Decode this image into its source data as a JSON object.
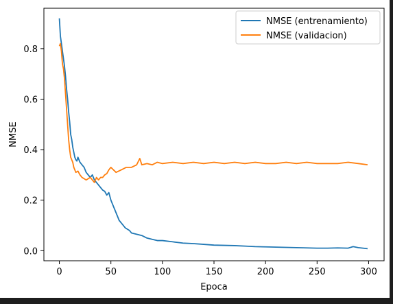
{
  "chart_data": {
    "type": "line",
    "xlabel": "Epoca",
    "ylabel": "NMSE",
    "xlim": [
      -15,
      315
    ],
    "ylim": [
      -0.04,
      0.96
    ],
    "xticks": [
      0,
      50,
      100,
      150,
      200,
      250,
      300
    ],
    "yticks": [
      0.0,
      0.2,
      0.4,
      0.6,
      0.8
    ],
    "ytick_labels": [
      "0.0",
      "0.2",
      "0.4",
      "0.6",
      "0.8"
    ],
    "legend_position": "top-right",
    "grid": false,
    "series": [
      {
        "name": "NMSE (entrenamiento)",
        "color": "#1f77b4",
        "x": [
          0,
          1,
          2,
          3,
          4,
          5,
          6,
          7,
          8,
          9,
          10,
          11,
          12,
          13,
          14,
          15,
          16,
          17,
          18,
          19,
          20,
          22,
          24,
          26,
          28,
          30,
          32,
          34,
          36,
          38,
          40,
          42,
          44,
          46,
          48,
          50,
          52,
          54,
          56,
          58,
          60,
          62,
          64,
          66,
          68,
          70,
          75,
          80,
          85,
          90,
          95,
          100,
          110,
          120,
          130,
          140,
          150,
          160,
          170,
          180,
          190,
          200,
          210,
          220,
          230,
          240,
          250,
          260,
          270,
          280,
          285,
          290,
          299
        ],
        "y": [
          0.92,
          0.85,
          0.82,
          0.79,
          0.76,
          0.73,
          0.69,
          0.64,
          0.6,
          0.55,
          0.51,
          0.46,
          0.44,
          0.41,
          0.39,
          0.37,
          0.36,
          0.355,
          0.37,
          0.36,
          0.35,
          0.34,
          0.33,
          0.31,
          0.3,
          0.29,
          0.3,
          0.28,
          0.27,
          0.26,
          0.25,
          0.24,
          0.235,
          0.22,
          0.23,
          0.2,
          0.18,
          0.16,
          0.14,
          0.12,
          0.11,
          0.1,
          0.09,
          0.085,
          0.08,
          0.07,
          0.065,
          0.06,
          0.05,
          0.045,
          0.04,
          0.04,
          0.035,
          0.03,
          0.028,
          0.025,
          0.022,
          0.021,
          0.02,
          0.018,
          0.016,
          0.015,
          0.014,
          0.013,
          0.012,
          0.011,
          0.01,
          0.01,
          0.011,
          0.01,
          0.016,
          0.012,
          0.008
        ]
      },
      {
        "name": "NMSE (validacion)",
        "color": "#ff7f0e",
        "x": [
          0,
          1,
          2,
          3,
          4,
          5,
          6,
          7,
          8,
          9,
          10,
          11,
          12,
          13,
          14,
          15,
          16,
          18,
          20,
          22,
          24,
          26,
          28,
          30,
          32,
          34,
          36,
          38,
          40,
          42,
          44,
          46,
          48,
          50,
          55,
          60,
          65,
          70,
          75,
          78,
          80,
          85,
          90,
          95,
          100,
          110,
          120,
          130,
          140,
          150,
          160,
          170,
          180,
          190,
          200,
          210,
          220,
          230,
          240,
          250,
          260,
          270,
          280,
          290,
          299
        ],
        "y": [
          0.81,
          0.82,
          0.79,
          0.74,
          0.72,
          0.68,
          0.62,
          0.56,
          0.5,
          0.44,
          0.4,
          0.37,
          0.36,
          0.35,
          0.33,
          0.32,
          0.31,
          0.315,
          0.3,
          0.29,
          0.285,
          0.28,
          0.285,
          0.29,
          0.28,
          0.27,
          0.29,
          0.28,
          0.29,
          0.29,
          0.3,
          0.305,
          0.32,
          0.33,
          0.31,
          0.32,
          0.33,
          0.33,
          0.34,
          0.365,
          0.34,
          0.345,
          0.34,
          0.35,
          0.345,
          0.35,
          0.345,
          0.35,
          0.345,
          0.35,
          0.345,
          0.35,
          0.345,
          0.35,
          0.345,
          0.345,
          0.35,
          0.345,
          0.35,
          0.345,
          0.345,
          0.345,
          0.35,
          0.345,
          0.34
        ]
      }
    ]
  }
}
